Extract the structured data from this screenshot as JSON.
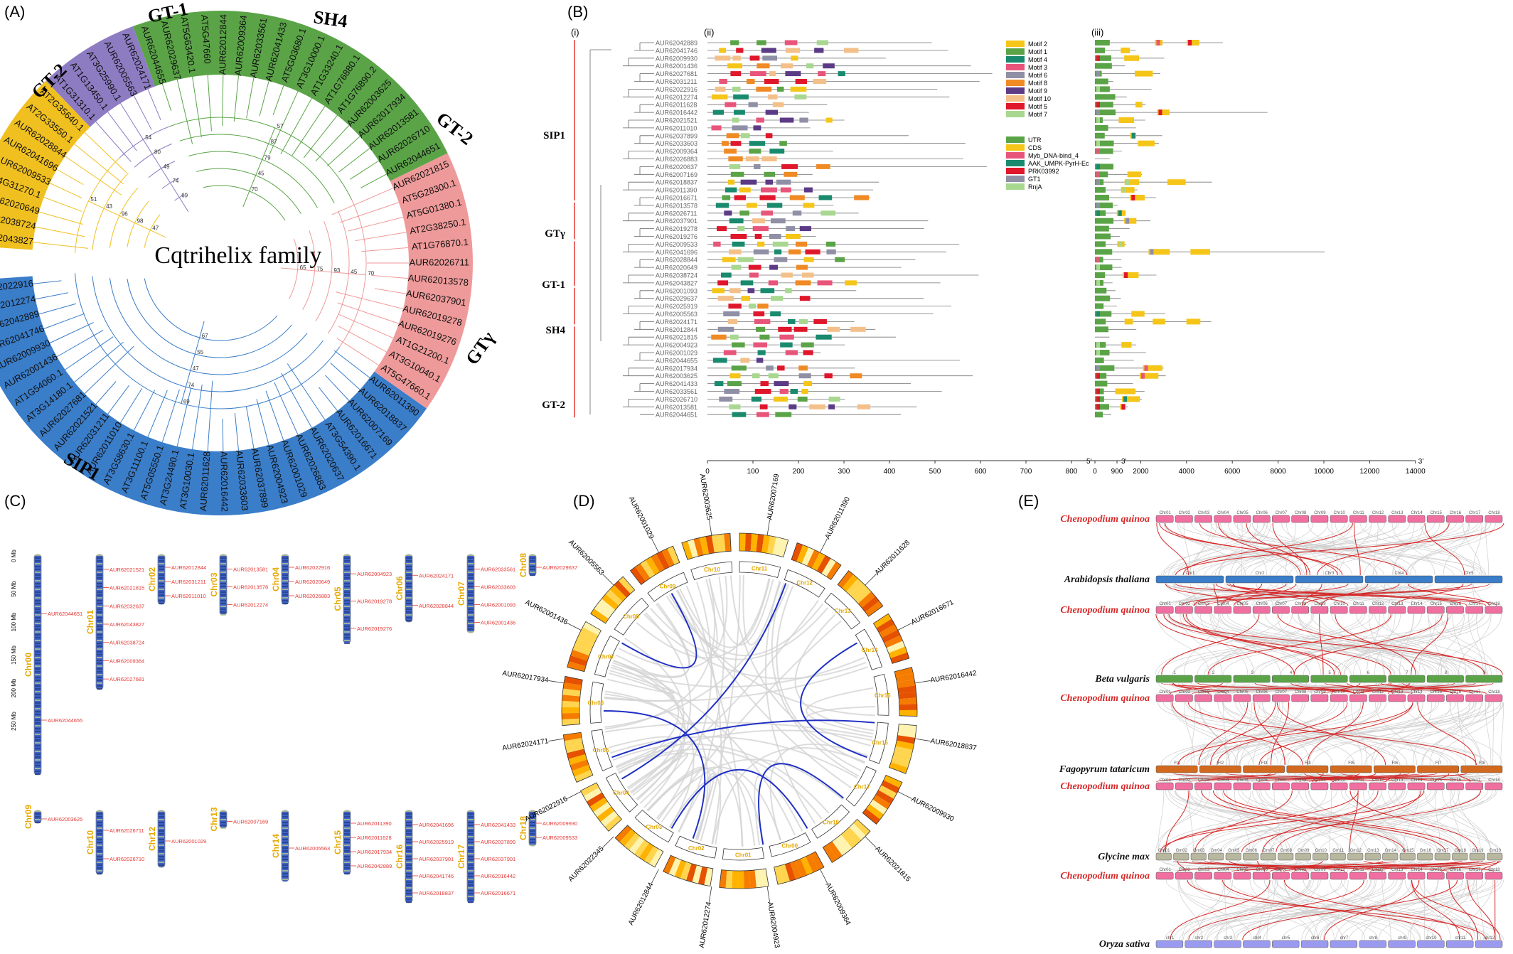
{
  "panels": {
    "a": "(A)",
    "b": "(B)",
    "c": "(C)",
    "d": "(D)",
    "e": "(E)"
  },
  "panel_a": {
    "center_title": "Cqtrihelix family",
    "clades": [
      {
        "name": "SIP1",
        "color": "#3a7dc9",
        "leaves": [
          "AUR62022916",
          "AUR62012274",
          "AUR62042889",
          "AUR62041746",
          "AUR62009930",
          "AUR62001436",
          "AT1G54060.1",
          "AT3G14180.1",
          "AUR62027681",
          "AUR62021521",
          "AUR62031211",
          "AUR62011010",
          "AT3G58630.1",
          "AT3G11100.1",
          "AT5G05550.1",
          "AT3G24490.1",
          "AT3G10030.1",
          "AUR62011628",
          "AUR62016442",
          "AUR62033603",
          "AUR62037899",
          "AUR62004923",
          "AUR62001029",
          "AUR62026883",
          "AUR62020637",
          "AT3G54390.1",
          "AUR62016671",
          "AUR62007169",
          "AUR62018837",
          "AUR62011390"
        ]
      },
      {
        "name": "GTγ",
        "color": "#ef9a9a",
        "leaves": [
          "AT5G47660.1",
          "AT3G10040.1",
          "AT1G21200.1",
          "AUR62019276",
          "AUR62019278",
          "AUR62037901",
          "AUR62013578",
          "AUR62026711",
          "AT1G76870.1",
          "AT2G38250.1",
          "AT5G01380.1",
          "AT5G28300.1",
          "AUR62021815"
        ]
      },
      {
        "name": "GT-2",
        "color": "#5aa447",
        "leaves": [
          "AUR62044651",
          "AUR62026710",
          "AUR62013581",
          "AUR62017934",
          "AUR62003625",
          "AT1G76890.2",
          "AT1G76880.1",
          "AT1G33240.1",
          "AT3G10000.1",
          "AT5G03680.1",
          "AUR62041433",
          "AUR62033561",
          "AUR62009364",
          "AUR62012844",
          "AT5G47660",
          "AT5G63420.1",
          "AUR62029637",
          "AUR62044655"
        ]
      },
      {
        "name": "GT-1",
        "color": "#8e7cc3",
        "leaves": [
          "AUR62024171",
          "AUR62005563",
          "AT3G25990.1",
          "AT1G13450.1",
          "AT1G31310.1"
        ]
      },
      {
        "name": "SH4",
        "color": "#f0c020",
        "leaves": [
          "AT2G35640.1",
          "AT2G33550.1",
          "AUR62028844",
          "AUR62041696",
          "AUR62009533",
          "AT4G31270.1",
          "AUR62020649",
          "AUR62038724",
          "AUR62043827"
        ]
      }
    ]
  },
  "panel_b": {
    "sub_labels": [
      "(i)",
      "(ii)",
      "(iii)"
    ],
    "groups": [
      "SIP1",
      "GTγ",
      "GT-1",
      "SH4",
      "GT-2"
    ],
    "genes": [
      "AUR62042889",
      "AUR62041746",
      "AUR62009930",
      "AUR62001436",
      "AUR62027681",
      "AUR62031211",
      "AUR62022916",
      "AUR62012274",
      "AUR62011628",
      "AUR62016442",
      "AUR62021521",
      "AUR62011010",
      "AUR62037899",
      "AUR62033603",
      "AUR62009364",
      "AUR62026883",
      "AUR62020637",
      "AUR62007169",
      "AUR62018837",
      "AUR62011390",
      "AUR62016671",
      "AUR62013578",
      "AUR62026711",
      "AUR62037901",
      "AUR62019278",
      "AUR62019276",
      "AUR62009533",
      "AUR62041696",
      "AUR62028844",
      "AUR62020649",
      "AUR62038724",
      "AUR62043827",
      "AUR62001093",
      "AUR62029637",
      "AUR62025919",
      "AUR62005563",
      "AUR62024171",
      "AUR62012844",
      "AUR62021815",
      "AUR62004923",
      "AUR62001029",
      "AUR62044655",
      "AUR62017934",
      "AUR62003625",
      "AUR62041433",
      "AUR62033561",
      "AUR62026710",
      "AUR62013581",
      "AUR62044651"
    ],
    "motif_legend": [
      {
        "label": "Motif 2",
        "color": "#f5c518"
      },
      {
        "label": "Motif 1",
        "color": "#5aa447"
      },
      {
        "label": "Motif 4",
        "color": "#1a8a6e"
      },
      {
        "label": "Motif 3",
        "color": "#e8557a"
      },
      {
        "label": "Motif 6",
        "color": "#8f8fa6"
      },
      {
        "label": "Motif 8",
        "color": "#f08a24"
      },
      {
        "label": "Motif 9",
        "color": "#5b3a86"
      },
      {
        "label": "Motif 10",
        "color": "#f4c08a"
      },
      {
        "label": "Motif 5",
        "color": "#e0162b"
      },
      {
        "label": "Motif 7",
        "color": "#a8d890"
      }
    ],
    "domain_legend": [
      {
        "label": "UTR",
        "color": "#5aa447"
      },
      {
        "label": "CDS",
        "color": "#f5c518"
      },
      {
        "label": "Myb_DNA-bind_4",
        "color": "#e8557a"
      },
      {
        "label": "AAK_UMPK-PyrH-Ec",
        "color": "#1a8a6e"
      },
      {
        "label": "PRK03992",
        "color": "#e0162b"
      },
      {
        "label": "GT1",
        "color": "#8f8fa6"
      },
      {
        "label": "RnjA",
        "color": "#a8d890"
      }
    ],
    "motif_axis": [
      "0",
      "100",
      "200",
      "300",
      "400",
      "500",
      "600",
      "700",
      "800",
      "900"
    ],
    "motif_axis_end": "3'",
    "gene_axis": [
      "0",
      "2000",
      "4000",
      "6000",
      "8000",
      "10000",
      "12000",
      "14000"
    ],
    "gene_axis_start": "5'",
    "gene_axis_end": "3'"
  },
  "panel_c": {
    "scale": [
      "0 Mb",
      "50 Mb",
      "100 Mb",
      "150 Mb",
      "200 Mb",
      "250 Mb"
    ],
    "row1": [
      {
        "chr": "Chr00",
        "genes": [
          "AUR62044651",
          "AUR62044655"
        ]
      },
      {
        "chr": "Chr01",
        "genes": [
          "AUR62021521",
          "AUR62021815",
          "AUR62032637",
          "AUR62043827",
          "AUR62038724",
          "AUR62009364",
          "AUR62027681"
        ]
      },
      {
        "chr": "Chr02",
        "genes": [
          "AUR62012844",
          "AUR62031211",
          "AUR62011010"
        ]
      },
      {
        "chr": "Chr03",
        "genes": [
          "AUR62013581",
          "AUR62013578",
          "AUR62012274"
        ]
      },
      {
        "chr": "Chr04",
        "genes": [
          "AUR62022916",
          "AUR62020649",
          "AUR62026883"
        ]
      },
      {
        "chr": "Chr05",
        "genes": [
          "AUR62004923",
          "AUR62019278",
          "AUR62019276"
        ]
      },
      {
        "chr": "Chr06",
        "genes": [
          "AUR62024171",
          "AUR62028844"
        ]
      },
      {
        "chr": "Chr07",
        "genes": [
          "AUR62033561",
          "AUR62033603",
          "AUR62001093",
          "AUR62001436"
        ]
      },
      {
        "chr": "Chr08",
        "genes": [
          "AUR62029637"
        ]
      }
    ],
    "row2": [
      {
        "chr": "Chr09",
        "genes": [
          "AUR62003625"
        ]
      },
      {
        "chr": "Chr10",
        "genes": [
          "AUR62026711",
          "AUR62026710"
        ]
      },
      {
        "chr": "Chr12",
        "genes": [
          "AUR62001029"
        ]
      },
      {
        "chr": "Chr13",
        "genes": [
          "AUR62007169"
        ]
      },
      {
        "chr": "Chr14",
        "genes": [
          "AUR62005563"
        ]
      },
      {
        "chr": "Chr15",
        "genes": [
          "AUR62011390",
          "AUR62011628",
          "AUR62017934",
          "AUR62042889"
        ]
      },
      {
        "chr": "Chr16",
        "genes": [
          "AUR62041696",
          "AUR62025919",
          "AUR62037901",
          "AUR62041746",
          "AUR62018837"
        ]
      },
      {
        "chr": "Chr17",
        "genes": [
          "AUR62041433",
          "AUR62037899",
          "AUR62037901",
          "AUR62016442",
          "AUR62016671"
        ]
      },
      {
        "chr": "Chr18",
        "genes": [
          "AUR62009930",
          "AUR62009533"
        ]
      }
    ]
  },
  "panel_d": {
    "chromosomes": [
      "Chr11",
      "Chr12",
      "Chr13",
      "Chr14",
      "Chr15",
      "Chr16",
      "Chr17",
      "Chr18",
      "Chr00",
      "Chr01",
      "Chr02",
      "Chr03",
      "Chr04",
      "Chr05",
      "Chr06",
      "Chr07",
      "Chr08",
      "Chr09",
      "Chr10"
    ],
    "gene_labels": [
      "AUR62007169",
      "AUR62011390",
      "AUR62011628",
      "AUR62016671",
      "AUR62016442",
      "AUR62018837",
      "AUR62009930",
      "AUR62021815",
      "AUR62009364",
      "AUR62004923",
      "AUR62012274",
      "AUR62012844",
      "AUR62022345",
      "AUR62022916",
      "AUR62024171",
      "AUR62017934",
      "AUR62001436",
      "AUR62005563",
      "AUR62001029",
      "AUR62003625"
    ]
  },
  "panel_e": {
    "species": [
      "Chenopodium quinoa",
      "Arabidopsis thaliana",
      "Chenopodium quinoa",
      "Beta vulgaris",
      "Chenopodium quinoa",
      "Fagopyrum tataricum",
      "Chenopodium quinoa",
      "Glycine max",
      "Chenopodium quinoa",
      "Oryza sativa"
    ],
    "quinoa_chr": [
      "Chr01",
      "Chr02",
      "Chr03",
      "Chr04",
      "Chr05",
      "Chr06",
      "Chr07",
      "Chr08",
      "Chr09",
      "Chr10",
      "Chr11",
      "Chr12",
      "Chr13",
      "Chr14",
      "Chr15",
      "Chr16",
      "Chr17",
      "Chr18"
    ],
    "arabidopsis_chr": [
      "Chr1",
      "Chr2",
      "Chr3",
      "Chr4",
      "Chr5"
    ],
    "beet_chr": [
      "1",
      "2",
      "3",
      "4",
      "5",
      "6",
      "7",
      "8",
      "9"
    ],
    "buckwheat_chr": [
      "Ft1",
      "Ft2",
      "Ft3",
      "Ft4",
      "Ft5",
      "Ft6",
      "Ft7",
      "Ft8"
    ],
    "soy_chr": [
      "Gm01",
      "Gm02",
      "Gm03",
      "Gm04",
      "Gm05",
      "Gm06",
      "Gm07",
      "Gm08",
      "Gm09",
      "Gm10",
      "Gm11",
      "Gm12",
      "Gm13",
      "Gm14",
      "Gm15",
      "Gm16",
      "Gm17",
      "Gm18",
      "Gm19",
      "Gm20"
    ],
    "rice_chr": [
      "chr1",
      "chr2",
      "chr3",
      "chr4",
      "chr5",
      "chr6",
      "chr7",
      "chr8",
      "chr9",
      "chr10",
      "chr11",
      "chr12"
    ],
    "colors": {
      "quinoa": "#f06fa0",
      "arabidopsis": "#3a7dc9",
      "beet": "#5aa447",
      "buckwheat": "#d2691e",
      "soy": "#b8b8a0",
      "rice": "#9a9af0",
      "link": "#d62828"
    }
  }
}
